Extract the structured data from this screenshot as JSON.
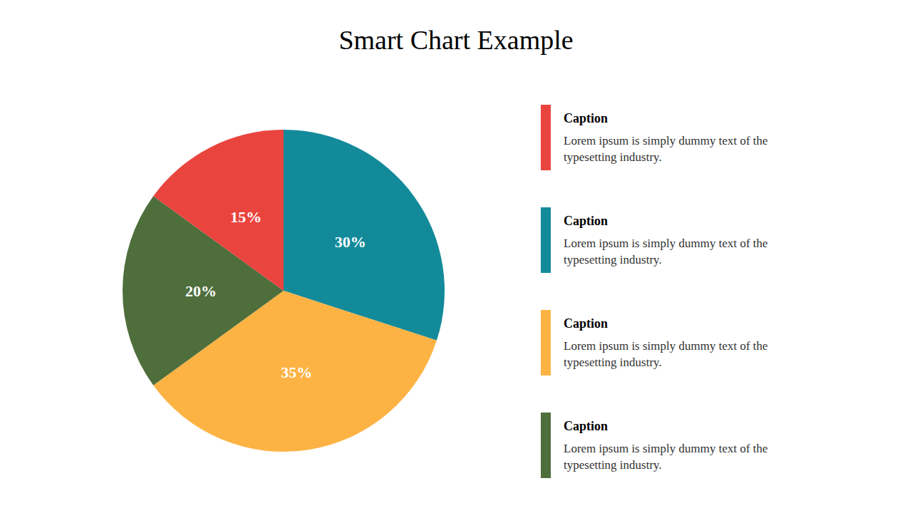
{
  "chart_data": {
    "type": "pie",
    "title": "Smart Chart Example",
    "values": [
      30,
      35,
      20,
      15
    ],
    "value_labels": [
      "30%",
      "35%",
      "20%",
      "15%"
    ],
    "colors": [
      "#138a9a",
      "#fdb344",
      "#4e6e3c",
      "#ea443f"
    ],
    "data_labels": true,
    "annotations": [
      {
        "title": "Caption",
        "text": "Lorem ipsum is simply dummy text of the typesetting industry.",
        "color": "#ea443f"
      },
      {
        "title": "Caption",
        "text": "Lorem ipsum is simply dummy text of the typesetting industry.",
        "color": "#138a9a"
      },
      {
        "title": "Caption",
        "text": "Lorem ipsum is simply dummy text of the typesetting industry.",
        "color": "#fdb344"
      },
      {
        "title": "Caption",
        "text": "Lorem ipsum is simply dummy text of the typesetting industry.",
        "color": "#4e6e3c"
      }
    ]
  }
}
